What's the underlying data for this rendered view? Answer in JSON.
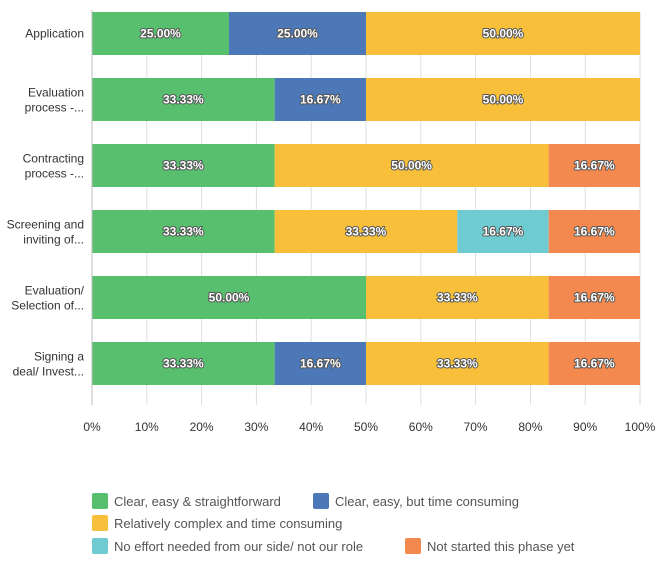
{
  "chart_data": {
    "type": "bar",
    "orientation": "horizontal",
    "stacked": true,
    "percent": true,
    "categories": [
      [
        "Application"
      ],
      [
        "Evaluation",
        "process -..."
      ],
      [
        "Contracting",
        "process -..."
      ],
      [
        "Screening and",
        "inviting of..."
      ],
      [
        "Evaluation/",
        "Selection of..."
      ],
      [
        "Signing a",
        "deal/ Invest..."
      ]
    ],
    "series": [
      {
        "name": "Clear, easy & straightforward",
        "color": "#57bf6e",
        "values": [
          25.0,
          33.33,
          33.33,
          33.33,
          50.0,
          33.33
        ],
        "labels": [
          "25.00%",
          "33.33%",
          "33.33%",
          "33.33%",
          "50.00%",
          "33.33%"
        ]
      },
      {
        "name": "Clear, easy, but time consuming",
        "color": "#4c78b8",
        "values": [
          25.0,
          16.67,
          0,
          0,
          0,
          16.67
        ],
        "labels": [
          "25.00%",
          "16.67%",
          "",
          "",
          "",
          "16.67%"
        ]
      },
      {
        "name": "Relatively complex and time consuming",
        "color": "#f8c03a",
        "values": [
          50.0,
          50.0,
          50.0,
          33.33,
          33.33,
          33.33
        ],
        "labels": [
          "50.00%",
          "50.00%",
          "50.00%",
          "33.33%",
          "33.33%",
          "33.33%"
        ]
      },
      {
        "name": "No effort needed from our side/ not our role",
        "color": "#6dcbd1",
        "values": [
          0,
          0,
          0,
          16.67,
          0,
          0
        ],
        "labels": [
          "",
          "",
          "",
          "16.67%",
          "",
          ""
        ]
      },
      {
        "name": "Not started this phase yet",
        "color": "#f3894f",
        "values": [
          0,
          0,
          16.67,
          16.67,
          16.67,
          16.67
        ],
        "labels": [
          "",
          "",
          "16.67%",
          "16.67%",
          "16.67%",
          "16.67%"
        ]
      }
    ],
    "xlim": [
      0,
      100
    ],
    "xticks": [
      "0%",
      "10%",
      "20%",
      "30%",
      "40%",
      "50%",
      "60%",
      "70%",
      "80%",
      "90%",
      "100%"
    ],
    "grid": true,
    "legend_position": "bottom",
    "title": "",
    "xlabel": "",
    "ylabel": ""
  }
}
